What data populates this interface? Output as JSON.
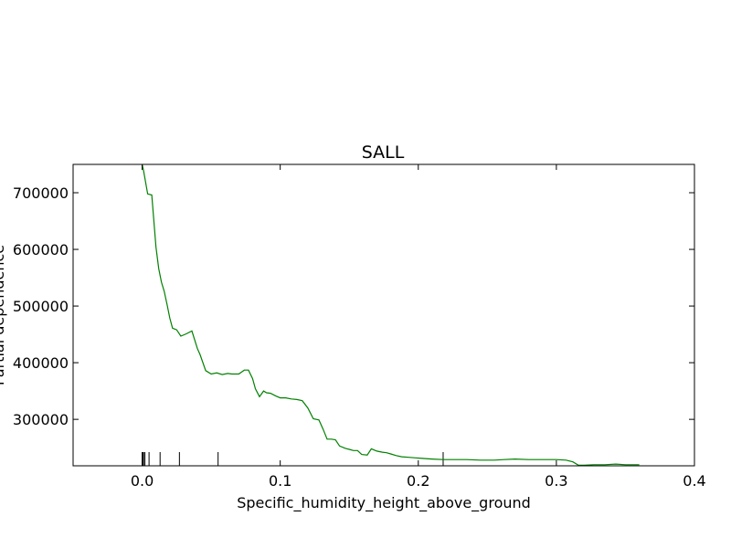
{
  "chart_data": {
    "type": "line",
    "title": "SALL",
    "xlabel": "Specific_humidity_height_above_ground",
    "ylabel": "Partial dependence",
    "xlim": [
      -0.05,
      0.4
    ],
    "ylim": [
      218000,
      750000
    ],
    "x_ticks": [
      0.0,
      0.1,
      0.2,
      0.3,
      0.4
    ],
    "x_tick_labels": [
      "0.0",
      "0.1",
      "0.2",
      "0.3",
      "0.4"
    ],
    "y_ticks": [
      300000,
      400000,
      500000,
      600000,
      700000
    ],
    "y_tick_labels": [
      "300000",
      "400000",
      "500000",
      "600000",
      "700000"
    ],
    "grid": false,
    "rug_x": [
      0.0,
      0.0005,
      0.001,
      0.002,
      0.005,
      0.013,
      0.027,
      0.055,
      0.218
    ],
    "series": [
      {
        "color": "#008000",
        "x": [
          0.0,
          0.001,
          0.004,
          0.007,
          0.01,
          0.012,
          0.014,
          0.016,
          0.018,
          0.02,
          0.022,
          0.025,
          0.028,
          0.032,
          0.036,
          0.04,
          0.042,
          0.046,
          0.05,
          0.054,
          0.058,
          0.062,
          0.065,
          0.07,
          0.074,
          0.077,
          0.08,
          0.082,
          0.085,
          0.088,
          0.09,
          0.093,
          0.097,
          0.1,
          0.104,
          0.108,
          0.112,
          0.116,
          0.12,
          0.124,
          0.128,
          0.131,
          0.134,
          0.137,
          0.14,
          0.143,
          0.147,
          0.15,
          0.153,
          0.156,
          0.159,
          0.163,
          0.166,
          0.17,
          0.174,
          0.177,
          0.18,
          0.184,
          0.188,
          0.193,
          0.198,
          0.203,
          0.21,
          0.218,
          0.226,
          0.235,
          0.245,
          0.255,
          0.262,
          0.27,
          0.28,
          0.29,
          0.3,
          0.307,
          0.312,
          0.316,
          0.32,
          0.327,
          0.335,
          0.343,
          0.35,
          0.36
        ],
        "y": [
          750000,
          739000,
          698000,
          696000,
          604000,
          566000,
          542000,
          526000,
          503000,
          479000,
          461000,
          458000,
          447000,
          451000,
          456000,
          425000,
          414000,
          386000,
          380000,
          382000,
          379000,
          381000,
          380000,
          380000,
          387000,
          387000,
          372000,
          354000,
          340000,
          350000,
          347000,
          346000,
          341000,
          338000,
          338000,
          336000,
          335000,
          333000,
          320000,
          301000,
          299000,
          283000,
          265000,
          265000,
          264000,
          253000,
          249000,
          247000,
          245000,
          245000,
          238000,
          237000,
          248000,
          244000,
          242000,
          241000,
          239000,
          236000,
          234000,
          233000,
          232000,
          231000,
          230000,
          229000,
          229000,
          229000,
          228000,
          228000,
          229000,
          230000,
          229000,
          229000,
          229000,
          228000,
          225000,
          219000,
          219000,
          220000,
          220000,
          221000,
          220000,
          220000
        ]
      }
    ]
  }
}
